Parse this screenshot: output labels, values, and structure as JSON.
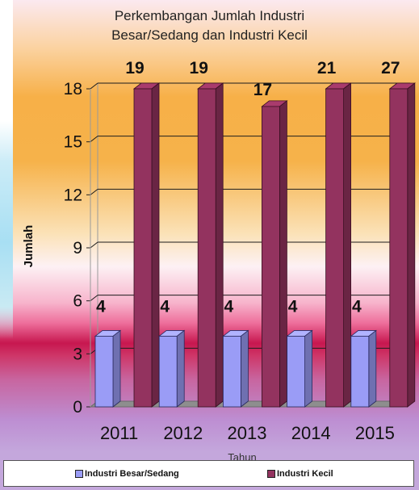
{
  "chart_data": {
    "type": "bar",
    "title": "Perkembangan Jumlah Industri Besar/Sedang dan Industri Kecil",
    "title_lines": [
      "Perkembangan Jumlah Industri",
      "Besar/Sedang dan Industri Kecil"
    ],
    "xlabel": "Tahun",
    "ylabel": "Jumlah",
    "categories": [
      "2011",
      "2012",
      "2013",
      "2014",
      "2015"
    ],
    "y_ticks": [
      "0",
      "3",
      "6",
      "9",
      "12",
      "15",
      "18"
    ],
    "ylim": [
      0,
      18
    ],
    "series": [
      {
        "name": "Industri Besar/Sedang",
        "values": [
          4,
          4,
          4,
          4,
          4
        ],
        "data_labels": [
          "4",
          "4",
          "4",
          "4",
          "4"
        ],
        "color": "#9a9cf6"
      },
      {
        "name": "Industri Kecil",
        "values": [
          19,
          19,
          17,
          21,
          27
        ],
        "data_labels": [
          "19",
          "19",
          "17",
          "21",
          "27"
        ],
        "color": "#93335f"
      }
    ],
    "grid": true,
    "legend_position": "bottom",
    "style": "3d-column"
  }
}
